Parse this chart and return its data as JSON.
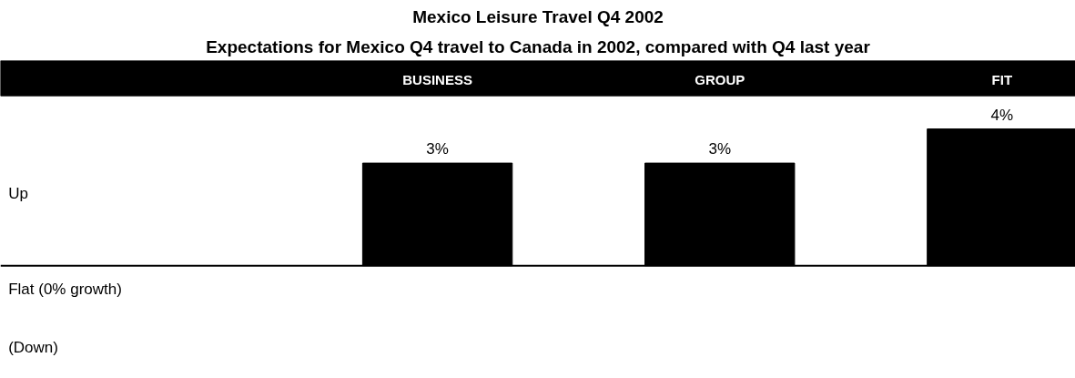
{
  "chart_data": {
    "type": "bar",
    "title": "Mexico Leisure Travel Q4 2002",
    "subtitle": "Expectations for Mexico Q4 travel to Canada in 2002, compared with Q4 last year",
    "categories": [
      "BUSINESS",
      "GROUP",
      "FIT"
    ],
    "values": [
      3,
      3,
      4
    ],
    "color": "#000000",
    "value_labels": [
      "3%",
      "3%",
      "4%"
    ],
    "annotations": [
      "Up",
      "Flat (0% growth)",
      "(Down)"
    ],
    "grid": false
  }
}
